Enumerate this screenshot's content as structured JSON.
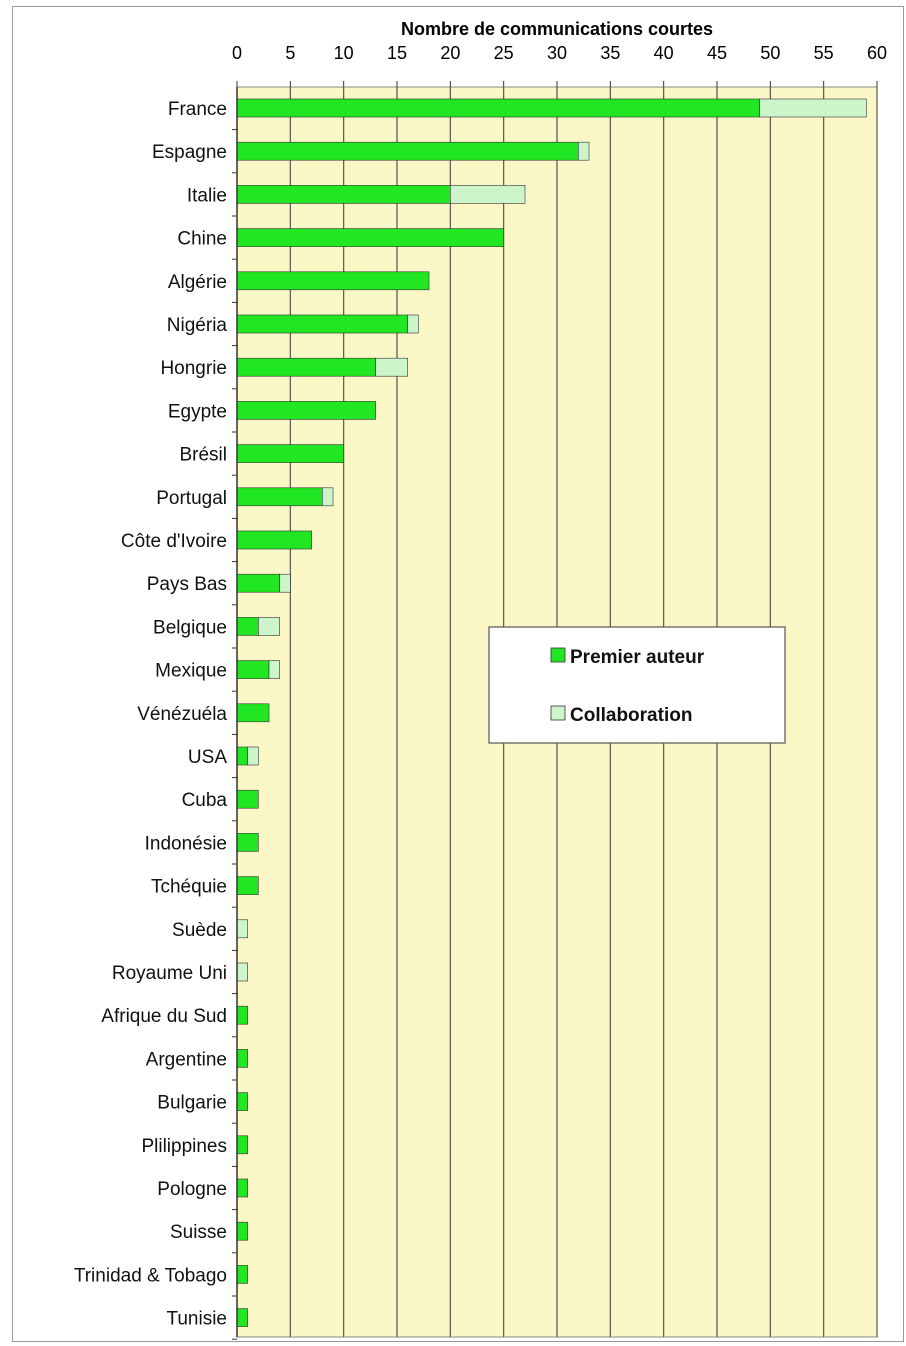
{
  "chart_data": {
    "type": "bar",
    "orientation": "horizontal",
    "stacked": true,
    "xlabel": "Nombre de communications courtes",
    "xlim": [
      0,
      60
    ],
    "xticks": [
      0,
      5,
      10,
      15,
      20,
      25,
      30,
      35,
      40,
      45,
      50,
      55,
      60
    ],
    "x_axis_position": "top",
    "grid": "vertical",
    "legend_position": "center-right",
    "categories": [
      "France",
      "Espagne",
      "Italie",
      "Chine",
      "Algérie",
      "Nigéria",
      "Hongrie",
      "Egypte",
      "Brésil",
      "Portugal",
      "Côte d'Ivoire",
      "Pays Bas",
      "Belgique",
      "Mexique",
      "Vénézuéla",
      "USA",
      "Cuba",
      "Indonésie",
      "Tchéquie",
      "Suède",
      "Royaume Uni",
      "Afrique du Sud",
      "Argentine",
      "Bulgarie",
      "Plilippines",
      "Pologne",
      "Suisse",
      "Trinidad & Tobago",
      "Tunisie"
    ],
    "series": [
      {
        "name": "Premier auteur",
        "color": "#22e622",
        "values": [
          49,
          32,
          20,
          25,
          18,
          16,
          13,
          13,
          10,
          8,
          7,
          4,
          2,
          3,
          3,
          1,
          2,
          2,
          2,
          0,
          0,
          1,
          1,
          1,
          1,
          1,
          1,
          1,
          1
        ]
      },
      {
        "name": "Collaboration",
        "color": "#ccf5cc",
        "values": [
          10,
          1,
          7,
          0,
          0,
          1,
          3,
          0,
          0,
          1,
          0,
          1,
          2,
          1,
          0,
          1,
          0,
          0,
          0,
          1,
          1,
          0,
          0,
          0,
          0,
          0,
          0,
          0,
          0
        ]
      }
    ],
    "colors": {
      "plot_background": "#fbf6c6",
      "gridline": "#555555",
      "bar_outline": "#333333"
    }
  }
}
